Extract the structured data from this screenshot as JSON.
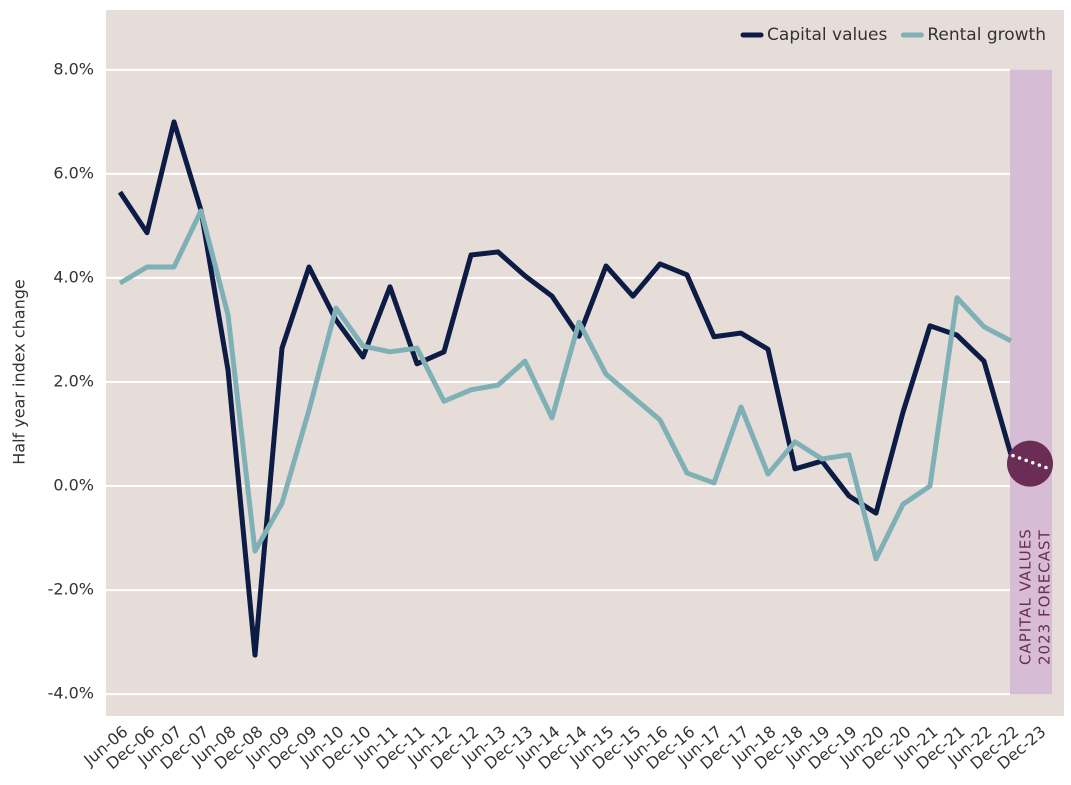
{
  "chart_data": {
    "type": "line",
    "y_axis_label": "Half year index change",
    "categories": [
      "Jun-06",
      "Dec-06",
      "Jun-07",
      "Dec-07",
      "Jun-08",
      "Dec-08",
      "Jun-09",
      "Dec-09",
      "Jun-10",
      "Dec-10",
      "Jun-11",
      "Dec-11",
      "Jun-12",
      "Dec-12",
      "Jun-13",
      "Dec-13",
      "Jun-14",
      "Dec-14",
      "Jun-15",
      "Dec-15",
      "Jun-16",
      "Dec-16",
      "Jun-17",
      "Dec-17",
      "Jun-18",
      "Dec-18",
      "Jun-19",
      "Dec-19",
      "Jun-20",
      "Dec-20",
      "Jun-21",
      "Dec-21",
      "Jun-22",
      "Dec-22",
      "Dec-23"
    ],
    "series": [
      {
        "name": "Capital values",
        "color": "#0c1c45",
        "values": [
          5.65,
          4.87,
          7.0,
          5.3,
          2.23,
          -3.25,
          2.65,
          4.21,
          3.19,
          2.48,
          3.83,
          2.35,
          2.58,
          4.44,
          4.5,
          4.04,
          3.65,
          2.88,
          4.23,
          3.65,
          4.27,
          4.06,
          2.87,
          2.94,
          2.63,
          0.33,
          0.48,
          -0.19,
          -0.52,
          1.42,
          3.08,
          2.9,
          2.4,
          0.6,
          null
        ]
      },
      {
        "name": "Rental growth",
        "color": "#7fb0b6",
        "values": [
          3.9,
          4.21,
          4.21,
          5.29,
          3.29,
          -1.25,
          -0.33,
          1.46,
          3.42,
          2.69,
          2.58,
          2.65,
          1.63,
          1.85,
          1.94,
          2.4,
          1.31,
          3.15,
          2.15,
          1.71,
          1.27,
          0.25,
          0.06,
          1.52,
          0.23,
          0.85,
          0.52,
          0.6,
          -1.4,
          -0.35,
          0.0,
          3.62,
          3.06,
          2.79,
          null
        ]
      }
    ],
    "forecast": {
      "label_lines": [
        "CAPITAL VALUES",
        "2023 FORECAST"
      ],
      "value": 0.43,
      "color": "#6b2d55",
      "band_color": "#d7bcd6"
    },
    "ylim": [
      -4.42,
      9.15
    ],
    "yticks": [
      {
        "value": -4,
        "label": "-4.0%"
      },
      {
        "value": -2,
        "label": "-2.0%"
      },
      {
        "value": 0,
        "label": "0.0%"
      },
      {
        "value": 2,
        "label": "2.0%"
      },
      {
        "value": 4,
        "label": "4.0%"
      },
      {
        "value": 6,
        "label": "6.0%"
      },
      {
        "value": 8,
        "label": "8.0%"
      }
    ],
    "grid": true,
    "legend": "top-right",
    "background": "#e6ddd8"
  }
}
